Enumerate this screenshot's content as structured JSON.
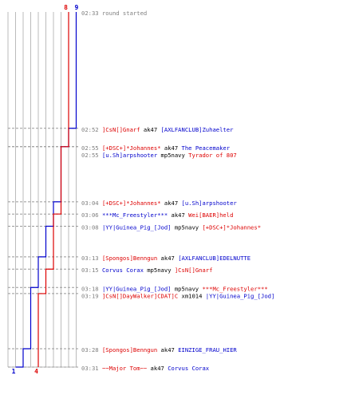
{
  "chart_data": {
    "type": "line",
    "title": "",
    "colors": {
      "team_a": "#0000cc",
      "team_b": "#dd0000",
      "grid": "#bbbbbb",
      "dash": "#999999",
      "time": "#808080"
    },
    "series": [
      {
        "name": "",
        "color": "#0000cc",
        "start_count": 9,
        "end_count": 1,
        "start_label": "9",
        "end_label": "1",
        "steps": [
          {
            "time": "02:52",
            "count": 8
          },
          {
            "time": "02:55",
            "count": 7
          },
          {
            "time": "03:04",
            "count": 6
          },
          {
            "time": "03:08",
            "count": 5
          },
          {
            "time": "03:13",
            "count": 4
          },
          {
            "time": "03:18",
            "count": 3
          },
          {
            "time": "03:28",
            "count": 2
          },
          {
            "time": "03:31",
            "count": 1
          }
        ]
      },
      {
        "name": "",
        "color": "#dd0000",
        "start_count": 8,
        "end_count": 4,
        "start_label": "8",
        "end_label": "4",
        "steps": [
          {
            "time": "02:55",
            "count": 7
          },
          {
            "time": "03:06",
            "count": 6
          },
          {
            "time": "03:15",
            "count": 5
          },
          {
            "time": "03:19",
            "count": 4
          }
        ]
      }
    ],
    "max_count": 9,
    "events": [
      {
        "time": "02:33",
        "note": "round started",
        "killer": "",
        "killer_team": "",
        "weapon": "",
        "victim": "",
        "victim_team": ""
      },
      {
        "time": "02:52",
        "killer": "]CsN[]Gnarf",
        "killer_team": "red",
        "weapon": "ak47",
        "victim": "[AXLFANCLUB]Zuhaelter",
        "victim_team": "blue"
      },
      {
        "time": "02:55",
        "killer": "[+DSC+]*Johannes*",
        "killer_team": "red",
        "weapon": "ak47",
        "victim": "The Peacemaker",
        "victim_team": "blue"
      },
      {
        "time": "02:55",
        "killer": "[u.Sh]arpshooter",
        "killer_team": "blue",
        "weapon": "mp5navy",
        "victim": "Tyrador of 807",
        "victim_team": "red"
      },
      {
        "time": "03:04",
        "killer": "[+DSC+]*Johannes*",
        "killer_team": "red",
        "weapon": "ak47",
        "victim": "[u.Sh]arpshooter",
        "victim_team": "blue"
      },
      {
        "time": "03:06",
        "killer": "***Mc_Freestyler***",
        "killer_team": "blue",
        "weapon": "ak47",
        "victim": "Wei[BAER]held",
        "victim_team": "red"
      },
      {
        "time": "03:08",
        "killer": "|YY|Guinea_Pig_[Jod]",
        "killer_team": "blue",
        "weapon": "mp5navy",
        "victim": "[+DSC+]*Johannes*",
        "victim_team": "red"
      },
      {
        "time": "03:13",
        "killer": "[Spongos]Benngun",
        "killer_team": "red",
        "weapon": "ak47",
        "victim": "[AXLFANCLUB]EDELNUTTE",
        "victim_team": "blue"
      },
      {
        "time": "03:15",
        "killer": "Corvus Corax",
        "killer_team": "blue",
        "weapon": "mp5navy",
        "victim": "]CsN[]Gnarf",
        "victim_team": "red"
      },
      {
        "time": "03:18",
        "killer": "|YY|Guinea_Pig_[Jod]",
        "killer_team": "blue",
        "weapon": "mp5navy",
        "victim": "***Mc_Freestyler***",
        "victim_team": "red"
      },
      {
        "time": "03:19",
        "killer": "]CsN[]DayWalker]CDAT]C",
        "killer_team": "red",
        "weapon": "xm1014",
        "victim": "|YY|Guinea_Pig_[Jod]",
        "victim_team": "blue"
      },
      {
        "time": "03:28",
        "killer": "[Spongos]Benngun",
        "killer_team": "red",
        "weapon": "ak47",
        "victim": "EINZIGE_FRAU_HIER",
        "victim_team": "blue"
      },
      {
        "time": "03:31",
        "killer": "~~Major Tom~~",
        "killer_team": "red",
        "weapon": "ak47",
        "victim": "Corvus Corax",
        "victim_team": "blue"
      }
    ]
  }
}
